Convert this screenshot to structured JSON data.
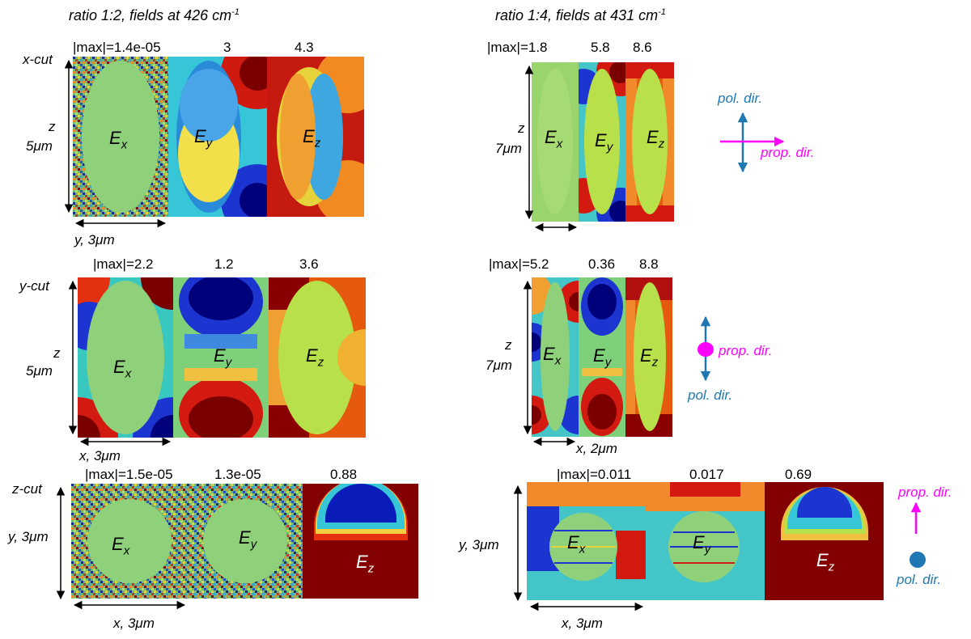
{
  "left": {
    "title": "ratio 1:2, fields at 426 cm",
    "title_sup": "-1",
    "rows": [
      {
        "cut": "x-cut",
        "vlabel_axis": "z",
        "vlabel_len": "5μm",
        "hlabel": "y, 3μm",
        "maxes": [
          "|max|=1.4e-05",
          "3",
          "4.3"
        ]
      },
      {
        "cut": "y-cut",
        "vlabel_axis": "z",
        "vlabel_len": "5μm",
        "hlabel": "x, 3μm",
        "maxes": [
          "|max|=2.2",
          "1.2",
          "3.6"
        ]
      },
      {
        "cut": "z-cut",
        "vlabel_axis": "y, 3μm",
        "vlabel_len": "",
        "hlabel": "x, 3μm",
        "maxes": [
          "|max|=1.5e-05",
          "1.3e-05",
          "0.88"
        ]
      }
    ]
  },
  "right": {
    "title": "ratio 1:4, fields at 431 cm",
    "title_sup": "-1",
    "rows": [
      {
        "vlabel_axis": "z",
        "vlabel_len": "7μm",
        "hlabel": "",
        "maxes": [
          "|max|=1.8",
          "5.8",
          "8.6"
        ]
      },
      {
        "vlabel_axis": "z",
        "vlabel_len": "7μm",
        "hlabel": "x, 2μm",
        "maxes": [
          "|max|=5.2",
          "0.36",
          "8.8"
        ]
      },
      {
        "vlabel_axis": "y, 3μm",
        "vlabel_len": "",
        "hlabel": "x, 3μm",
        "maxes": [
          "|max|=0.011",
          "0.017",
          "0.69"
        ]
      }
    ]
  },
  "field": {
    "E": "E",
    "x": "x",
    "y": "y",
    "z": "z"
  },
  "legend": {
    "pol": "pol. dir.",
    "prop": "prop. dir."
  },
  "colors": {
    "pol": "#1f77b4",
    "prop": "#ff00ff"
  }
}
